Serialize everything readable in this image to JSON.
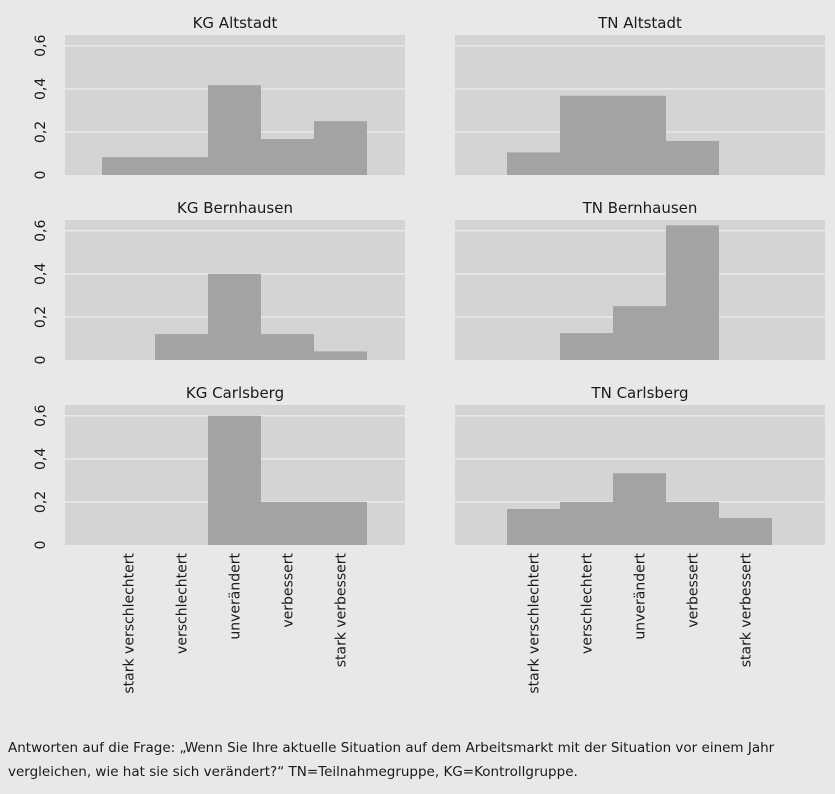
{
  "colors": {
    "background": "#e8e8e8",
    "plot_background": "#d4d4d4",
    "gridline": "#e9e9e9",
    "bar": "#a3a3a3"
  },
  "chart_data": [
    {
      "type": "bar",
      "title": "KG Altstadt",
      "categories": [
        "stark verschlechtert",
        "verschlechtert",
        "unverändert",
        "verbessert",
        "stark verbessert"
      ],
      "values": [
        0.083,
        0.083,
        0.417,
        0.167,
        0.25
      ],
      "ylim": [
        0,
        0.65
      ],
      "yticks": [
        "0",
        "0,2",
        "0,4",
        "0,6"
      ],
      "grid": true
    },
    {
      "type": "bar",
      "title": "TN Altstadt",
      "categories": [
        "stark verschlechtert",
        "verschlechtert",
        "unverändert",
        "verbessert",
        "stark verbessert"
      ],
      "values": [
        0.105,
        0.368,
        0.368,
        0.158,
        0
      ],
      "ylim": [
        0,
        0.65
      ],
      "yticks": [],
      "grid": true
    },
    {
      "type": "bar",
      "title": "KG Bernhausen",
      "categories": [
        "stark verschlechtert",
        "verschlechtert",
        "unverändert",
        "verbessert",
        "stark verbessert"
      ],
      "values": [
        0,
        0.12,
        0.4,
        0.12,
        0.04
      ],
      "ylim": [
        0,
        0.65
      ],
      "yticks": [
        "0",
        "0,2",
        "0,4",
        "0,6"
      ],
      "grid": true
    },
    {
      "type": "bar",
      "title": "TN Bernhausen",
      "categories": [
        "stark verschlechtert",
        "verschlechtert",
        "unverändert",
        "verbessert",
        "stark verbessert"
      ],
      "values": [
        0,
        0.125,
        0.25,
        0.625,
        0
      ],
      "ylim": [
        0,
        0.65
      ],
      "yticks": [],
      "grid": true
    },
    {
      "type": "bar",
      "title": "KG Carlsberg",
      "categories": [
        "stark verschlechtert",
        "verschlechtert",
        "unverändert",
        "verbessert",
        "stark verbessert"
      ],
      "values": [
        0,
        0,
        0.6,
        0.2,
        0.2
      ],
      "ylim": [
        0,
        0.65
      ],
      "yticks": [
        "0",
        "0,2",
        "0,4",
        "0,6"
      ],
      "grid": true
    },
    {
      "type": "bar",
      "title": "TN Carlsberg",
      "categories": [
        "stark verschlechtert",
        "verschlechtert",
        "unverändert",
        "verbessert",
        "stark verbessert"
      ],
      "values": [
        0.167,
        0.2,
        0.333,
        0.2,
        0.125
      ],
      "ylim": [
        0,
        0.65
      ],
      "yticks": [],
      "grid": true
    }
  ],
  "caption": "Antworten auf die Frage: „Wenn Sie Ihre aktuelle Situation auf dem Arbeitsmarkt mit der Situation vor einem Jahr vergleichen, wie hat sie sich verändert?“ TN=Teilnahmegruppe, KG=Kontrollgruppe."
}
